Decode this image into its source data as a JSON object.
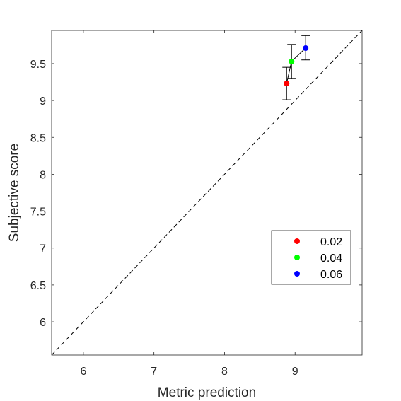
{
  "chart_data": {
    "type": "scatter",
    "xlabel": "Metric prediction",
    "ylabel": "Subjective score",
    "xlim": [
      5.55,
      9.95
    ],
    "ylim": [
      5.55,
      9.95
    ],
    "xticks": [
      6,
      7,
      8,
      9
    ],
    "yticks": [
      6,
      6.5,
      7,
      7.5,
      8,
      8.5,
      9,
      9.5
    ],
    "xtick_labels": [
      "6",
      "7",
      "8",
      "9"
    ],
    "ytick_labels": [
      "6",
      "6.5",
      "7",
      "7.5",
      "8",
      "8.5",
      "9",
      "9.5"
    ],
    "grid": false,
    "reference_line": {
      "style": "dashed",
      "from": [
        5.55,
        5.55
      ],
      "to": [
        9.95,
        9.95
      ]
    },
    "connecting_line": true,
    "series": [
      {
        "name": "0.02",
        "color": "#ff0000",
        "x": 8.88,
        "y": 9.23,
        "y_err_low": 9.01,
        "y_err_high": 9.45
      },
      {
        "name": "0.04",
        "color": "#00ff00",
        "x": 8.95,
        "y": 9.53,
        "y_err_low": 9.3,
        "y_err_high": 9.76
      },
      {
        "name": "0.06",
        "color": "#0000ff",
        "x": 9.15,
        "y": 9.71,
        "y_err_low": 9.55,
        "y_err_high": 9.88
      }
    ],
    "legend": {
      "position": "lower-right"
    }
  }
}
